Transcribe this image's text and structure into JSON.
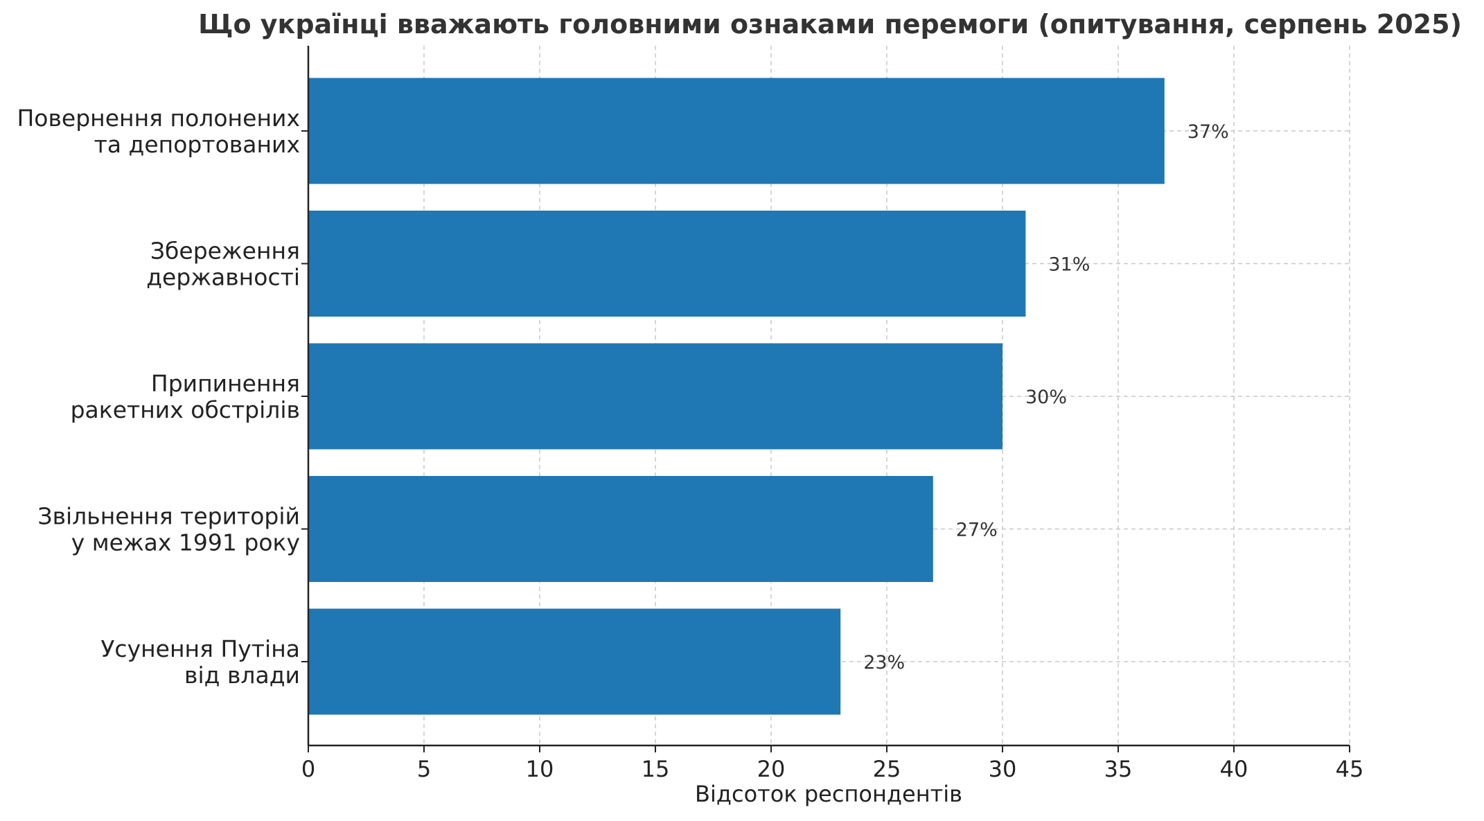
{
  "chart_data": {
    "type": "bar",
    "orientation": "horizontal",
    "title": "Що українці вважають головними ознаками перемоги (опитування, серпень 2025)",
    "xlabel": "Відсоток респондентів",
    "ylabel": "",
    "xlim": [
      0,
      45
    ],
    "xticks": [
      "0",
      "5",
      "10",
      "15",
      "20",
      "25",
      "30",
      "35",
      "40",
      "45"
    ],
    "grid": true,
    "categories": [
      [
        "Повернення полонених",
        "та депортованих"
      ],
      [
        "Збереження",
        "державності"
      ],
      [
        "Припинення",
        "ракетних обстрілів"
      ],
      [
        "Звільнення територій",
        "у межах 1991 року"
      ],
      [
        "Усунення Путіна",
        "від влади"
      ]
    ],
    "values": [
      37,
      31,
      30,
      27,
      23
    ],
    "value_labels": [
      "37%",
      "31%",
      "30%",
      "27%",
      "23%"
    ],
    "bar_color": "#1f77b4"
  }
}
